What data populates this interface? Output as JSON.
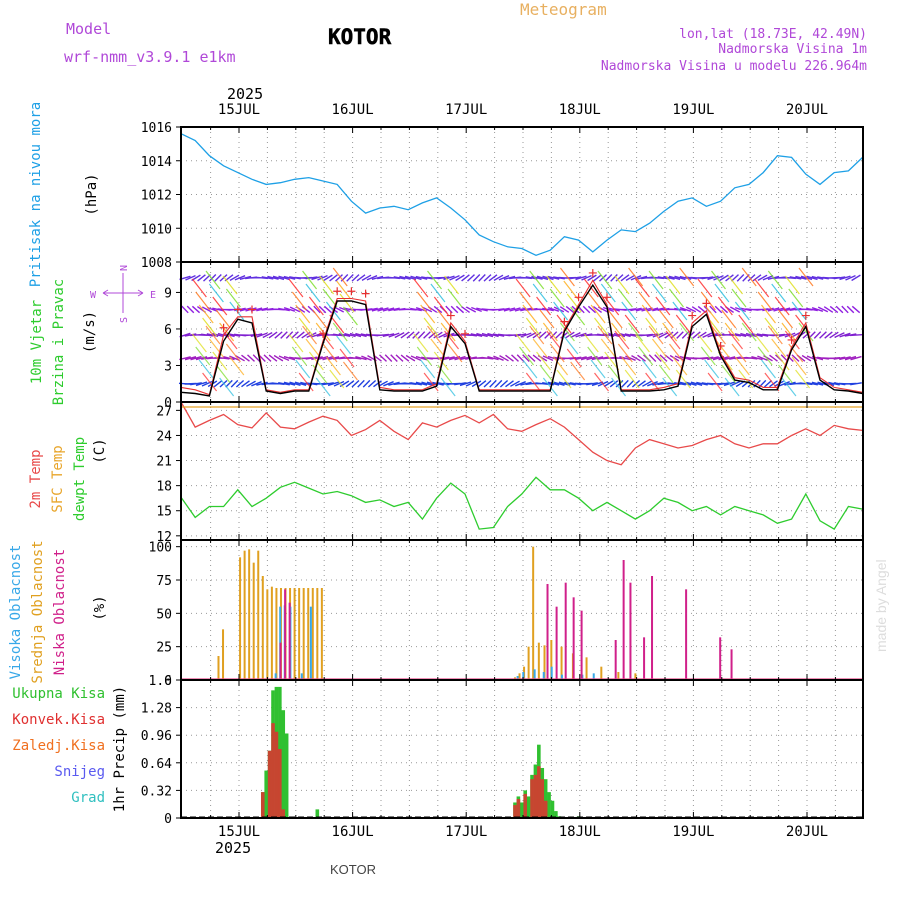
{
  "header": {
    "model_label": "Model",
    "model_name": "wrf-nmm_v3.9.1 e1km",
    "title": "KOTOR",
    "meteogram": "Meteogram",
    "lonlat": "lon,lat (18.73E, 42.49N)",
    "altitude": "Nadmorska Visina 1m",
    "model_altitude": "Nadmorska Visina u modelu 226.964m",
    "year_top": "2025",
    "year_bottom": "2025",
    "footer_station": "KOTOR",
    "credit": "made by Angel"
  },
  "colors": {
    "pressure": "#1ea0e6",
    "temp2m": "#e84a4a",
    "sfc": "#e8a52a",
    "dewpt": "#2ecc2e",
    "high": "#38a8e8",
    "mid": "#e0a020",
    "low": "#d0208a",
    "snow": "#5a5af0",
    "grad": "#30c0c0",
    "conv": "#e03030",
    "zaledj": "#f07020",
    "total": "#30c030",
    "speed": "#000000",
    "dir": "#e83030",
    "wind_legend": "#b048d8"
  },
  "chart_data": [
    {
      "type": "line",
      "panel": "pressure",
      "ylabel_lines": [
        "Pritisak na nivou mora",
        "(hPa)"
      ],
      "ylim": [
        1008,
        1016
      ],
      "yticks": [
        "1008",
        "1010",
        "1012",
        "1014",
        "1016"
      ],
      "x_day": [
        0,
        0.125,
        0.25,
        0.375,
        0.5,
        0.625,
        0.75,
        0.875,
        1,
        1.125,
        1.25,
        1.375,
        1.5,
        1.625,
        1.75,
        1.875,
        2,
        2.125,
        2.25,
        2.375,
        2.5,
        2.625,
        2.75,
        2.875,
        3,
        3.125,
        3.25,
        3.375,
        3.5,
        3.625,
        3.75,
        3.875,
        4,
        4.125,
        4.25,
        4.375,
        4.5,
        4.625,
        4.75,
        4.875,
        5,
        5.125,
        5.25,
        5.375,
        5.5,
        5.625,
        5.75,
        5.875,
        6
      ],
      "values": [
        1015.6,
        1015.2,
        1014.3,
        1013.7,
        1013.3,
        1012.9,
        1012.6,
        1012.7,
        1012.9,
        1013,
        1012.8,
        1012.6,
        1011.6,
        1010.9,
        1011.2,
        1011.3,
        1011.1,
        1011.5,
        1011.8,
        1011.2,
        1010.5,
        1009.6,
        1009.2,
        1008.9,
        1008.8,
        1008.4,
        1008.7,
        1009.5,
        1009.3,
        1008.6,
        1009.3,
        1009.9,
        1009.8,
        1010.3,
        1011,
        1011.6,
        1011.8,
        1011.3,
        1011.6,
        1012.4,
        1012.6,
        1013.3,
        1014.3,
        1014.2,
        1013.2,
        1012.6,
        1013.3,
        1013.4,
        1014.2
      ],
      "series_name": "Pritisak na nivou mora"
    },
    {
      "type": "line",
      "panel": "wind",
      "ylabel_lines": [
        "10m Vjetar",
        "Brzina i Pravac",
        "(m/s)"
      ],
      "ylim": [
        0,
        11.5
      ],
      "yticks": [
        "0",
        "3",
        "6",
        "9"
      ],
      "compass": {
        "n": "N",
        "s": "S",
        "w": "W",
        "e": "E"
      },
      "x_day": [
        0,
        0.125,
        0.25,
        0.375,
        0.5,
        0.625,
        0.75,
        0.875,
        1,
        1.125,
        1.25,
        1.375,
        1.5,
        1.625,
        1.75,
        1.875,
        2,
        2.125,
        2.25,
        2.375,
        2.5,
        2.625,
        2.75,
        2.875,
        3,
        3.125,
        3.25,
        3.375,
        3.5,
        3.625,
        3.75,
        3.875,
        4,
        4.125,
        4.25,
        4.375,
        4.5,
        4.625,
        4.75,
        4.875,
        5,
        5.125,
        5.25,
        5.375,
        5.5,
        5.625,
        5.75,
        5.875,
        6
      ],
      "speed": [
        1.2,
        1,
        0.6,
        5.5,
        7,
        7,
        1,
        0.8,
        1,
        1,
        5,
        8.5,
        8.5,
        8.3,
        1.2,
        1.0,
        1.0,
        1.0,
        1.5,
        6.5,
        5,
        1.0,
        1.0,
        1.0,
        1.0,
        1.0,
        1,
        6,
        8,
        10,
        8,
        1.0,
        1.0,
        1.0,
        1.2,
        1.5,
        6.5,
        7.5,
        4,
        2,
        1.8,
        1.2,
        1.2,
        4.5,
        6.5,
        2,
        1.2,
        1.0,
        0.8
      ],
      "speed_smooth": [
        0.8,
        0.7,
        0.5,
        5.0,
        6.8,
        6.5,
        0.9,
        0.7,
        0.9,
        0.9,
        4.8,
        8.3,
        8.3,
        8.0,
        1.0,
        0.9,
        0.9,
        0.9,
        1.3,
        6.2,
        4.8,
        0.9,
        0.9,
        0.9,
        0.9,
        0.9,
        0.9,
        5.8,
        7.8,
        9.6,
        7.8,
        0.9,
        0.9,
        0.9,
        1.0,
        1.3,
        6.2,
        7.2,
        3.8,
        1.8,
        1.6,
        1.0,
        1.0,
        4.3,
        6.2,
        1.8,
        1.0,
        0.9,
        0.7
      ],
      "direction_levels_ms": [
        1.5,
        3.6,
        5.5,
        7.6,
        10.2
      ]
    },
    {
      "type": "line",
      "panel": "temperature",
      "ylabel_lines": [
        "2m Temp",
        "SFC Temp",
        "dewpt Temp",
        "(C)"
      ],
      "ylim": [
        11.5,
        28
      ],
      "yticks": [
        "12",
        "15",
        "18",
        "21",
        "24",
        "27"
      ],
      "x_day": [
        0,
        0.125,
        0.25,
        0.375,
        0.5,
        0.625,
        0.75,
        0.875,
        1,
        1.125,
        1.25,
        1.375,
        1.5,
        1.625,
        1.75,
        1.875,
        2,
        2.125,
        2.25,
        2.375,
        2.5,
        2.625,
        2.75,
        2.875,
        3,
        3.125,
        3.25,
        3.375,
        3.5,
        3.625,
        3.75,
        3.875,
        4,
        4.125,
        4.25,
        4.375,
        4.5,
        4.625,
        4.75,
        4.875,
        5,
        5.125,
        5.25,
        5.375,
        5.5,
        5.625,
        5.75,
        5.875,
        6
      ],
      "series": [
        {
          "name": "2m Temp",
          "values": [
            28,
            25,
            25.8,
            26.5,
            25.3,
            24.9,
            26.7,
            25,
            24.8,
            25.6,
            26.3,
            25.8,
            24,
            24.7,
            25.8,
            24.5,
            23.5,
            25.5,
            25,
            25.8,
            26.4,
            25.5,
            26.5,
            24.8,
            24.5,
            25.3,
            26,
            25,
            23.5,
            22,
            21,
            20.5,
            22.5,
            23.5,
            23,
            22.5,
            22.8,
            23.5,
            24,
            23,
            22.5,
            23,
            23,
            24,
            24.8,
            24,
            25.2,
            24.8,
            24.6
          ]
        },
        {
          "name": "SFC Temp",
          "values": [
            27.4,
            27.4,
            27.4,
            27.4,
            27.4,
            27.4,
            27.4,
            27.4,
            27.4,
            27.4,
            27.4,
            27.4,
            27.4,
            27.4,
            27.4,
            27.4,
            27.4,
            27.4,
            27.4,
            27.4,
            27.4,
            27.4,
            27.4,
            27.4,
            27.4,
            27.4,
            27.4,
            27.4,
            27.4,
            27.4,
            27.4,
            27.4,
            27.4,
            27.4,
            27.4,
            27.4,
            27.4,
            27.4,
            27.4,
            27.4,
            27.4,
            27.4,
            27.4,
            27.4,
            27.4,
            27.4,
            27.4,
            27.4,
            27.4
          ]
        },
        {
          "name": "dewpt Temp",
          "values": [
            16.6,
            14.2,
            15.5,
            15.5,
            17.5,
            15.5,
            16.5,
            17.8,
            18.4,
            17.7,
            17,
            17.3,
            16.8,
            16,
            16.3,
            15.5,
            16,
            14,
            16.5,
            18.3,
            17,
            12.8,
            13,
            15.5,
            17,
            19,
            17.5,
            17.5,
            16.5,
            15,
            16,
            15,
            14,
            15,
            16.5,
            16,
            15,
            15.5,
            14.5,
            15.5,
            15,
            14.5,
            13.5,
            14,
            17,
            13.8,
            12.8,
            15.5,
            15.2
          ]
        }
      ]
    },
    {
      "type": "bar",
      "panel": "clouds",
      "ylabel_lines": [
        "Visoka Oblacnost",
        "Srednja Oblacnost",
        "Niska Oblacnost",
        "(%)"
      ],
      "ylim": [
        0,
        105
      ],
      "yticks": [
        "0",
        "25",
        "50",
        "75",
        "100"
      ],
      "series": [
        {
          "name": "Srednja Oblacnost",
          "x_day": [
            0.33,
            0.37,
            0.52,
            0.56,
            0.6,
            0.64,
            0.68,
            0.72,
            0.76,
            0.8,
            0.84,
            0.88,
            0.92,
            0.96,
            1.0,
            1.04,
            1.08,
            1.12,
            1.16,
            1.2,
            1.24,
            2.94,
            2.98,
            3.02,
            3.06,
            3.1,
            3.15,
            3.2,
            3.26,
            3.35,
            3.45,
            3.57,
            3.7,
            3.85,
            4.0
          ],
          "values": [
            18,
            38,
            92,
            97,
            98,
            88,
            97,
            78,
            68,
            70,
            69,
            69,
            69,
            69,
            69,
            69,
            69,
            69,
            69,
            69,
            69,
            2,
            5,
            10,
            25,
            100,
            28,
            26,
            30,
            25,
            20,
            17,
            10,
            6,
            5
          ]
        },
        {
          "name": "Visoka Oblacnost",
          "x_day": [
            0.82,
            0.86,
            0.9,
            0.95,
            1.05,
            1.13,
            2.95,
            3.0,
            3.1,
            3.18,
            3.25,
            3.34,
            3.52,
            3.62
          ],
          "values": [
            5,
            55,
            56,
            55,
            5,
            55,
            3,
            6,
            8,
            6,
            10,
            4,
            4,
            5
          ]
        },
        {
          "name": "Niska Oblacnost",
          "x_day": [
            0.85,
            0.89,
            0.93,
            3.2,
            3.28,
            3.36,
            3.43,
            3.5,
            3.8,
            3.87,
            3.93,
            4.05,
            4.12,
            4.42,
            4.72,
            4.82
          ],
          "values": [
            28,
            68,
            58,
            72,
            55,
            73,
            62,
            52,
            30,
            90,
            73,
            32,
            78,
            68,
            32,
            23
          ]
        }
      ]
    },
    {
      "type": "bar",
      "panel": "precip",
      "ylabel_lines": [
        "1hr Precip (mm)"
      ],
      "legend": [
        "Ukupna Kisa",
        "Konvek.Kisa",
        "Zaledj.Kisa",
        "Snijeg",
        "Grad"
      ],
      "ylim": [
        0,
        1.6
      ],
      "yticks": [
        "0",
        "0.32",
        "0.64",
        "0.96",
        "1.28",
        "1.6"
      ],
      "series": [
        {
          "name": "Ukupna Kisa",
          "x_day": [
            0.72,
            0.75,
            0.78,
            0.81,
            0.84,
            0.87,
            0.9,
            0.93,
            1.2,
            2.94,
            2.97,
            3.0,
            3.03,
            3.06,
            3.09,
            3.12,
            3.15,
            3.18,
            3.21,
            3.24,
            3.27,
            3.3,
            3.33,
            3.5
          ],
          "values": [
            0.3,
            0.55,
            0.78,
            1.48,
            1.52,
            1.52,
            1.25,
            0.98,
            0.1,
            0.18,
            0.25,
            0.18,
            0.32,
            0.25,
            0.5,
            0.62,
            0.85,
            0.58,
            0.45,
            0.3,
            0.2,
            0.08,
            0.02,
            0.02
          ]
        },
        {
          "name": "Konvek.Kisa",
          "x_day": [
            0.72,
            0.78,
            0.81,
            0.84,
            0.87,
            0.9,
            2.94,
            2.97,
            3.03,
            3.09,
            3.12,
            3.15,
            3.18,
            3.21
          ],
          "values": [
            0.3,
            0.78,
            1.1,
            1.0,
            0.8,
            0.1,
            0.15,
            0.22,
            0.28,
            0.45,
            0.5,
            0.6,
            0.45,
            0.2
          ]
        }
      ]
    }
  ],
  "x_axis": {
    "day_labels": [
      "15JUL",
      "16JUL",
      "17JUL",
      "18JUL",
      "19JUL",
      "20JUL"
    ]
  }
}
